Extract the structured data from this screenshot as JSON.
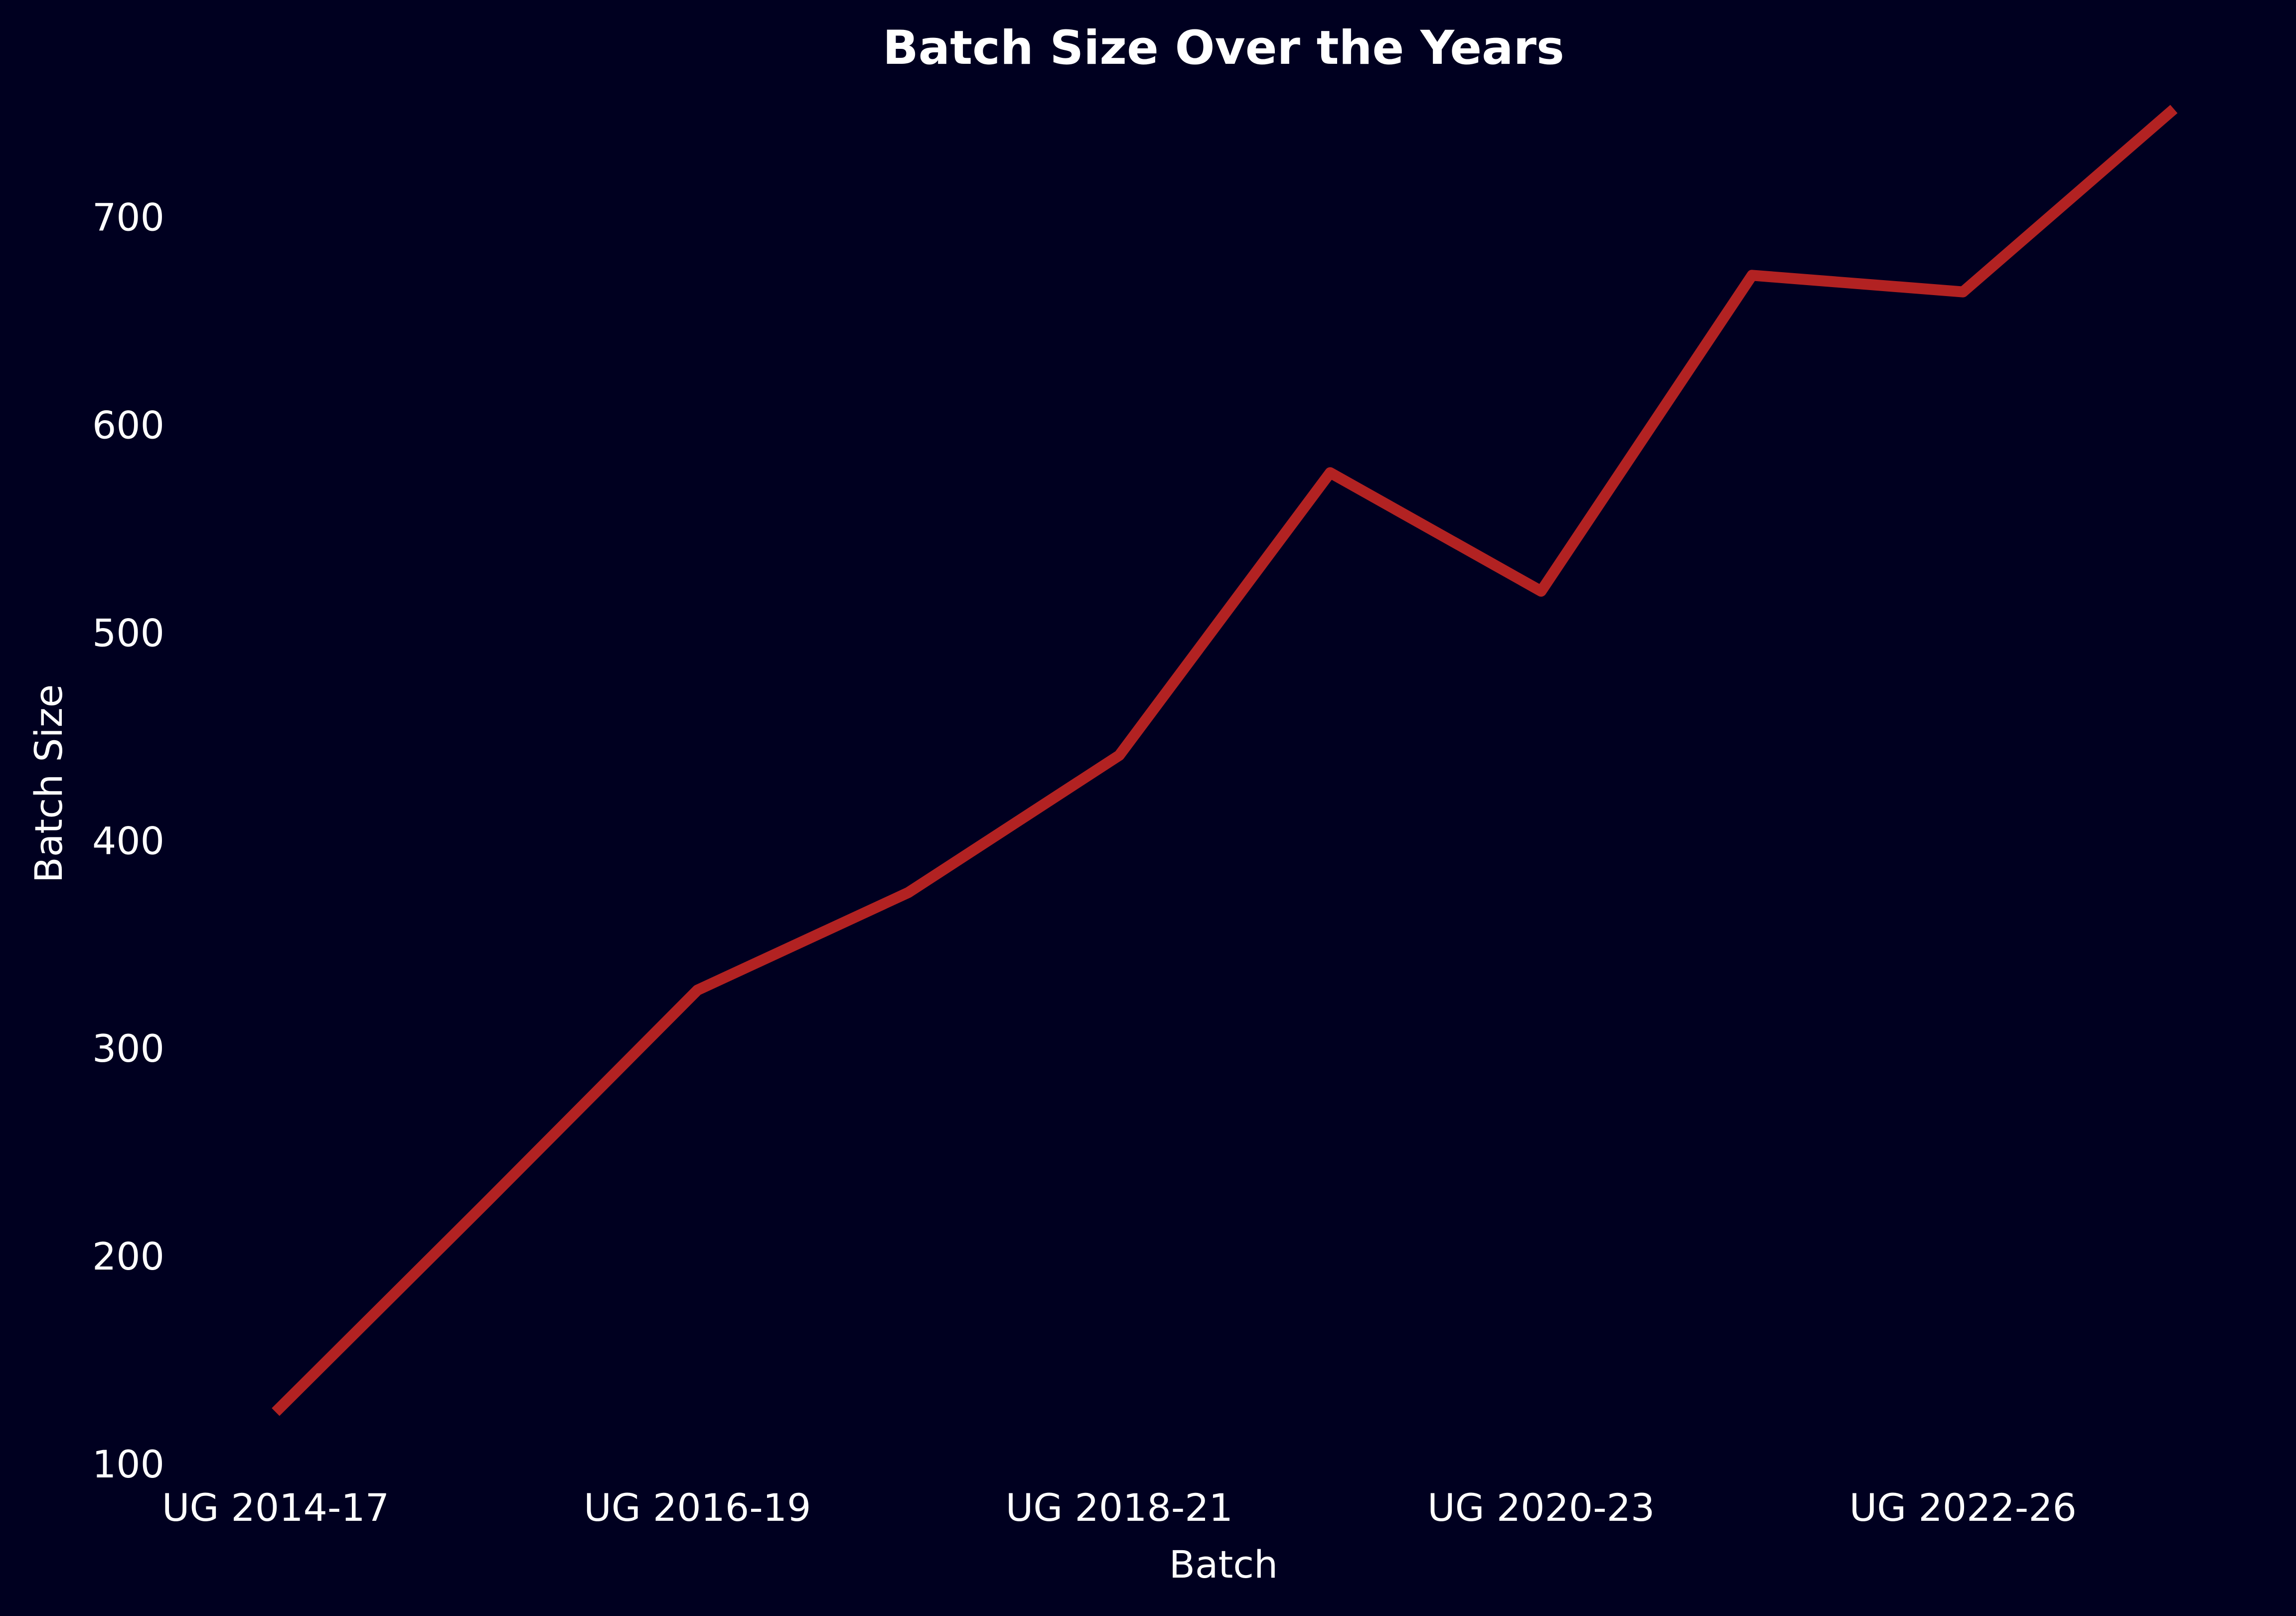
{
  "chart_data": {
    "type": "line",
    "title": "Batch Size Over the Years",
    "xlabel": "Batch",
    "ylabel": "Batch Size",
    "x_index": [
      0,
      1,
      2,
      3,
      4,
      5,
      6,
      7,
      8,
      9
    ],
    "values": [
      125,
      226,
      328,
      375,
      441,
      577,
      520,
      672,
      664,
      752
    ],
    "xticks": [
      {
        "index": 0,
        "label": "UG 2014-17"
      },
      {
        "index": 2,
        "label": "UG 2016-19"
      },
      {
        "index": 4,
        "label": "UG 2018-21"
      },
      {
        "index": 6,
        "label": "UG 2020-23"
      },
      {
        "index": 8,
        "label": "UG 2022-26"
      }
    ],
    "yticks": [
      100,
      200,
      300,
      400,
      500,
      600,
      700
    ],
    "ylim": [
      100,
      780
    ],
    "xlim": [
      0,
      9
    ],
    "grid": false,
    "legend": "none",
    "colors": {
      "background": "#000020",
      "line": "#b22222",
      "text": "#ffffff"
    }
  }
}
